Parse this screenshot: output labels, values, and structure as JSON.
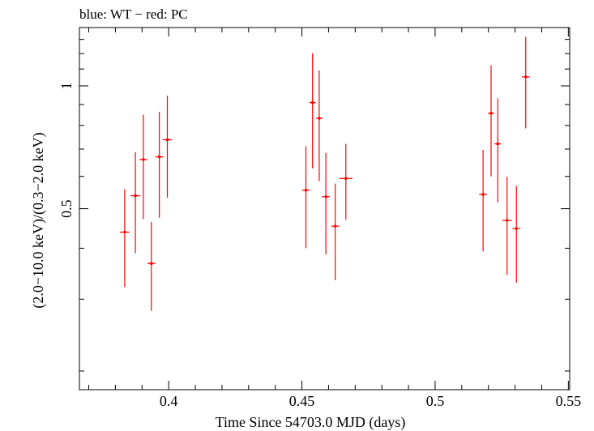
{
  "chart_data": {
    "type": "scatter",
    "title": "blue: WT − red: PC",
    "xlabel": "Time Since 54703.0 MJD (days)",
    "ylabel": "(2.0−10.0 keV)/(0.3−2.0 keV)",
    "xlim": [
      0.3665,
      0.5505
    ],
    "ylim": [
      0.18,
      1.39
    ],
    "y_scale": "log",
    "xticks": [
      {
        "value": 0.4,
        "label": "0.4"
      },
      {
        "value": 0.45,
        "label": "0.45"
      },
      {
        "value": 0.5,
        "label": "0.5"
      },
      {
        "value": 0.55,
        "label": "0.55"
      }
    ],
    "yticks": [
      {
        "value": 0.5,
        "label": "0.5"
      },
      {
        "value": 1,
        "label": "1"
      }
    ],
    "grid": false,
    "legend": "none",
    "series": [
      {
        "color": "#ff0000",
        "points": [
          {
            "x": 0.3835,
            "y": 0.438,
            "ylo": 0.321,
            "yhi": 0.558,
            "xerr": 0.0018
          },
          {
            "x": 0.3875,
            "y": 0.538,
            "ylo": 0.389,
            "yhi": 0.688,
            "xerr": 0.0018
          },
          {
            "x": 0.3905,
            "y": 0.66,
            "ylo": 0.471,
            "yhi": 0.85,
            "xerr": 0.0015
          },
          {
            "x": 0.3935,
            "y": 0.367,
            "ylo": 0.281,
            "yhi": 0.464,
            "xerr": 0.0015
          },
          {
            "x": 0.3965,
            "y": 0.67,
            "ylo": 0.475,
            "yhi": 0.864,
            "xerr": 0.0015
          },
          {
            "x": 0.3995,
            "y": 0.738,
            "ylo": 0.532,
            "yhi": 0.946,
            "xerr": 0.0018
          },
          {
            "x": 0.4515,
            "y": 0.555,
            "ylo": 0.4,
            "yhi": 0.711,
            "xerr": 0.0015
          },
          {
            "x": 0.454,
            "y": 0.91,
            "ylo": 0.628,
            "yhi": 1.203,
            "xerr": 0.0012
          },
          {
            "x": 0.4565,
            "y": 0.833,
            "ylo": 0.584,
            "yhi": 1.09,
            "xerr": 0.0012
          },
          {
            "x": 0.459,
            "y": 0.535,
            "ylo": 0.386,
            "yhi": 0.685,
            "xerr": 0.0015
          },
          {
            "x": 0.4625,
            "y": 0.453,
            "ylo": 0.334,
            "yhi": 0.576,
            "xerr": 0.0015
          },
          {
            "x": 0.4665,
            "y": 0.593,
            "ylo": 0.47,
            "yhi": 0.721,
            "xerr": 0.0025
          },
          {
            "x": 0.518,
            "y": 0.542,
            "ylo": 0.393,
            "yhi": 0.697,
            "xerr": 0.0015
          },
          {
            "x": 0.521,
            "y": 0.857,
            "ylo": 0.6,
            "yhi": 1.124,
            "xerr": 0.0012
          },
          {
            "x": 0.5235,
            "y": 0.721,
            "ylo": 0.518,
            "yhi": 0.932,
            "xerr": 0.0012
          },
          {
            "x": 0.527,
            "y": 0.468,
            "ylo": 0.344,
            "yhi": 0.599,
            "xerr": 0.0018
          },
          {
            "x": 0.5305,
            "y": 0.447,
            "ylo": 0.329,
            "yhi": 0.569,
            "xerr": 0.0015
          },
          {
            "x": 0.534,
            "y": 1.052,
            "ylo": 0.787,
            "yhi": 1.319,
            "xerr": 0.0015
          }
        ]
      }
    ]
  }
}
